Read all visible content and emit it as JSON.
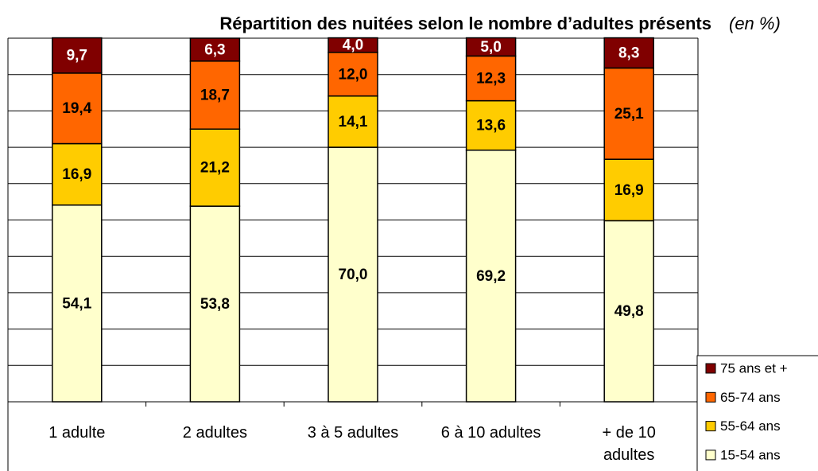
{
  "chart_data": {
    "type": "stacked_bar",
    "title": "Répartition des nuitées selon le nombre d’adultes présents",
    "subtitle": "(en %)",
    "categories": [
      "1 adulte",
      "2 adultes",
      "3 à 5 adultes",
      "6 à 10 adultes",
      "+ de 10 adultes"
    ],
    "series": [
      {
        "name": "15-54 ans",
        "color": "#FFFFCC",
        "values": [
          54.1,
          53.8,
          70.0,
          69.2,
          49.8
        ],
        "value_labels": [
          "54,1",
          "53,8",
          "70,0",
          "69,2",
          "49,8"
        ]
      },
      {
        "name": "55-64 ans",
        "color": "#FFCC00",
        "values": [
          16.9,
          21.2,
          14.1,
          13.6,
          16.9
        ],
        "value_labels": [
          "16,9",
          "21,2",
          "14,1",
          "13,6",
          "16,9"
        ]
      },
      {
        "name": "65-74 ans",
        "color": "#FF6600",
        "values": [
          19.4,
          18.7,
          12.0,
          12.3,
          25.1
        ],
        "value_labels": [
          "19,4",
          "18,7",
          "12,0",
          "12,3",
          "25,1"
        ]
      },
      {
        "name": "75 ans et +",
        "color": "#800000",
        "values": [
          9.7,
          6.3,
          4.0,
          5.0,
          8.3
        ],
        "value_labels": [
          "9,7",
          "6,3",
          "4,0",
          "5,0",
          "8,3"
        ]
      }
    ],
    "ylim": [
      0,
      100
    ],
    "yticks": [
      0,
      10,
      20,
      30,
      40,
      50,
      60,
      70,
      80,
      90,
      100
    ],
    "grid": true,
    "legend": "right"
  }
}
